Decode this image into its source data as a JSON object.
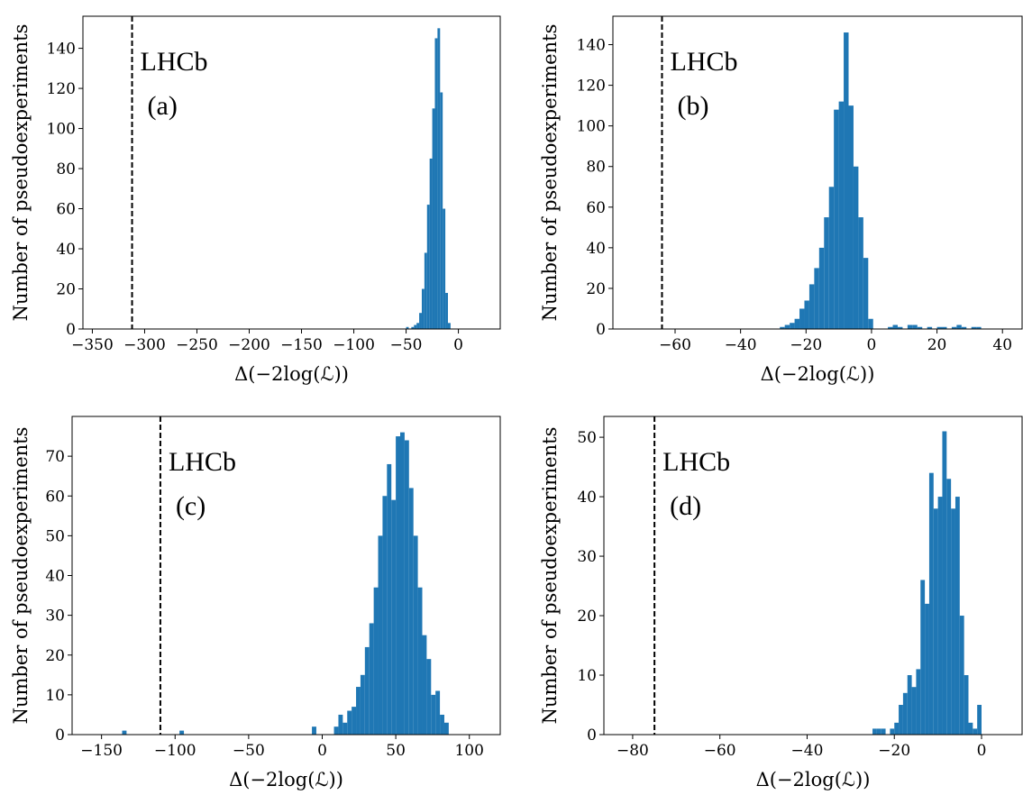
{
  "chart_data": [
    {
      "type": "histogram",
      "color": "#1f77b4",
      "xlabel": "Δ(−2log(ℒ))",
      "ylabel": "Number of pseudoexperiments",
      "annotations": [
        "LHCb",
        "(a)"
      ],
      "observed": -312,
      "bins": [
        -50,
        -47.5,
        -45,
        -42.5,
        -40,
        -37.5,
        -35,
        -32.5,
        -30,
        -27.5,
        -25,
        -22.5,
        -20,
        -17.5,
        -15,
        -12.5,
        -10,
        -7.5
      ],
      "counts": [
        1,
        0,
        1,
        2,
        3,
        8,
        20,
        38,
        62,
        85,
        110,
        145,
        150,
        118,
        60,
        18,
        3
      ],
      "xlim": [
        -359,
        40
      ],
      "ylim": [
        0,
        156
      ],
      "xticks": [
        {
          "value": -350,
          "label": "−350"
        },
        {
          "value": -300,
          "label": "−300"
        },
        {
          "value": -250,
          "label": "−250"
        },
        {
          "value": -200,
          "label": "−200"
        },
        {
          "value": -150,
          "label": "−150"
        },
        {
          "value": -100,
          "label": "−100"
        },
        {
          "value": -50,
          "label": "−50"
        },
        0
      ],
      "yticks": [
        0,
        20,
        40,
        60,
        80,
        100,
        120,
        140
      ]
    },
    {
      "type": "histogram",
      "color": "#1f77b4",
      "xlabel": "Δ(−2log(ℒ))",
      "ylabel": "Number of pseudoexperiments",
      "annotations": [
        "LHCb",
        "(b)"
      ],
      "observed": -64,
      "bins": [
        -28,
        -26.5,
        -25,
        -23.5,
        -22,
        -20.5,
        -19,
        -17.5,
        -16,
        -14.5,
        -13,
        -11.5,
        -10,
        -8.5,
        -7,
        -5.5,
        -4,
        -2.5,
        -1,
        0.5,
        2,
        3.5,
        5,
        6.5,
        8,
        9.5,
        11,
        12.5,
        14,
        15.5,
        17,
        18.5,
        20,
        21.5,
        23,
        24.5,
        26,
        27.5,
        29,
        30.5,
        32,
        33.5
      ],
      "counts": [
        1,
        2,
        3,
        5,
        10,
        14,
        22,
        30,
        40,
        55,
        70,
        108,
        112,
        146,
        110,
        80,
        55,
        35,
        5,
        0,
        0,
        0,
        1,
        2,
        1,
        0,
        2,
        2,
        1,
        0,
        1,
        0,
        1,
        1,
        0,
        1,
        2,
        1,
        0,
        1,
        1
      ],
      "xlim": [
        -79,
        46
      ],
      "ylim": [
        0,
        154
      ],
      "xticks": [
        {
          "value": -60,
          "label": "−60"
        },
        {
          "value": -40,
          "label": "−40"
        },
        {
          "value": -20,
          "label": "−20"
        },
        0,
        20,
        40
      ],
      "yticks": [
        0,
        20,
        40,
        60,
        80,
        100,
        120,
        140
      ]
    },
    {
      "type": "histogram",
      "color": "#1f77b4",
      "xlabel": "Δ(−2log(ℒ))",
      "ylabel": "Number of pseudoexperiments",
      "annotations": [
        "LHCb",
        "(c)"
      ],
      "observed": -110,
      "bins": [
        -136,
        -133,
        -130,
        -127,
        -124,
        -121,
        -118,
        -115,
        -112,
        -109,
        -106,
        -103,
        -100,
        -97,
        -94,
        -91,
        -88,
        -85,
        -82,
        -79,
        -76,
        -73,
        -70,
        -67,
        -64,
        -61,
        -58,
        -55,
        -52,
        -49,
        -46,
        -43,
        -40,
        -37,
        -34,
        -31,
        -28,
        -25,
        -22,
        -19,
        -16,
        -13,
        -10,
        -7,
        -4,
        -1,
        2,
        5,
        8,
        11,
        14,
        17,
        20,
        23,
        26,
        29,
        32,
        35,
        38,
        41,
        44,
        47,
        50,
        53,
        56,
        59,
        62,
        65,
        68,
        71,
        74,
        77,
        80,
        83,
        86
      ],
      "counts": [
        1,
        0,
        0,
        0,
        0,
        0,
        0,
        0,
        0,
        0,
        0,
        0,
        0,
        1,
        0,
        0,
        0,
        0,
        0,
        0,
        0,
        0,
        0,
        0,
        0,
        0,
        0,
        0,
        0,
        0,
        0,
        0,
        0,
        0,
        0,
        0,
        0,
        0,
        0,
        0,
        0,
        0,
        0,
        2,
        0,
        0,
        0,
        0,
        2,
        5,
        3,
        6,
        7,
        12,
        15,
        22,
        28,
        37,
        50,
        60,
        68,
        59,
        75,
        76,
        74,
        62,
        50,
        37,
        25,
        19,
        10,
        11,
        5,
        3
      ],
      "xlim": [
        -170,
        121
      ],
      "ylim": [
        0,
        80
      ],
      "xticks": [
        {
          "value": -150,
          "label": "−150"
        },
        {
          "value": -100,
          "label": "−100"
        },
        {
          "value": -50,
          "label": "−50"
        },
        0,
        50,
        100
      ],
      "yticks": [
        0,
        10,
        20,
        30,
        40,
        50,
        60,
        70
      ]
    },
    {
      "type": "histogram",
      "color": "#1f77b4",
      "xlabel": "Δ(−2log(ℒ))",
      "ylabel": "Number of pseudoexperiments",
      "annotations": [
        "LHCb",
        "(d)"
      ],
      "observed": -75,
      "bins": [
        -25,
        -24,
        -23,
        -22,
        -21,
        -20,
        -19,
        -18,
        -17,
        -16,
        -15,
        -14,
        -13,
        -12,
        -11,
        -10,
        -9,
        -8,
        -7,
        -6,
        -5,
        -4,
        -3,
        -2,
        -1,
        0
      ],
      "counts": [
        1,
        1,
        1,
        0,
        1,
        2,
        5,
        7,
        10,
        8,
        11,
        26,
        22,
        44,
        38,
        40,
        51,
        43,
        38,
        40,
        20,
        10,
        2,
        1,
        5
      ],
      "xlim": [
        -86.6,
        9.3
      ],
      "ylim": [
        0,
        53.5
      ],
      "xticks": [
        {
          "value": -80,
          "label": "−80"
        },
        {
          "value": -60,
          "label": "−60"
        },
        {
          "value": -40,
          "label": "−40"
        },
        {
          "value": -20,
          "label": "−20"
        },
        0
      ],
      "yticks": [
        0,
        10,
        20,
        30,
        40,
        50
      ]
    }
  ]
}
